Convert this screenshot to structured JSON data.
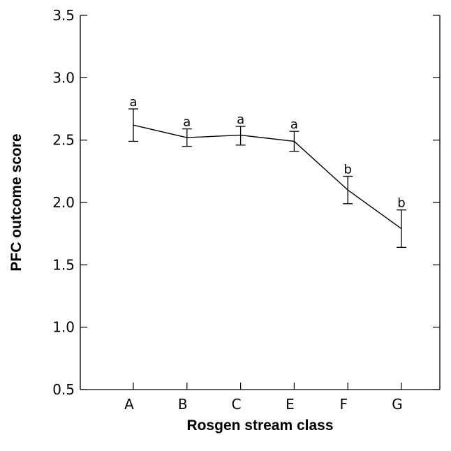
{
  "chart_data": {
    "type": "line",
    "xlabel": "Rosgen stream class",
    "ylabel": "PFC outcome score",
    "ylim": [
      0.5,
      3.5
    ],
    "yticks": [
      "0.5",
      "1.0",
      "1.5",
      "2.0",
      "2.5",
      "3.0",
      "3.5"
    ],
    "categories": [
      "A",
      "B",
      "C",
      "E",
      "F",
      "G"
    ],
    "series": [
      {
        "values": [
          2.62,
          2.52,
          2.54,
          2.49,
          2.1,
          1.79
        ],
        "err_low": [
          2.49,
          2.45,
          2.46,
          2.41,
          1.99,
          1.64
        ],
        "err_high": [
          2.75,
          2.59,
          2.61,
          2.57,
          2.21,
          1.94
        ],
        "labels": [
          "a",
          "a",
          "a",
          "a",
          "b",
          "b"
        ]
      }
    ],
    "grid": false,
    "legend": "none",
    "line_color": "#000000"
  }
}
